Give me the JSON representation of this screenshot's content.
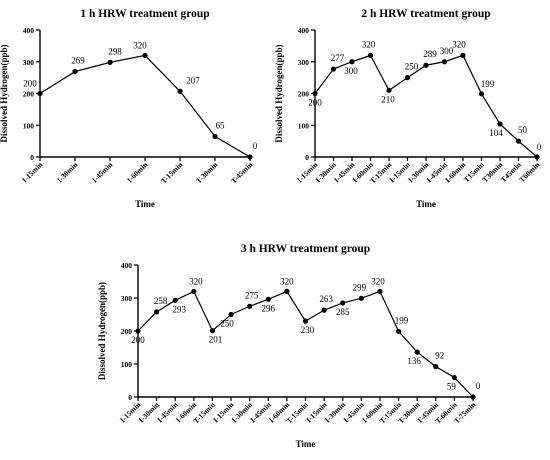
{
  "figure": {
    "background": "#ffffff",
    "line_color": "#000000"
  },
  "chart_data": [
    {
      "type": "line",
      "title": "1 h HRW treatment group",
      "xlabel": "Time",
      "ylabel": "Dissolved Hydrogen(ppb)",
      "ylim": [
        0,
        400
      ],
      "yticks": [
        "0",
        "100",
        "200",
        "300",
        "400"
      ],
      "grid": false,
      "legend": "none",
      "categories": [
        "I-15min",
        "I-30min",
        "I-45min",
        "I-60min",
        "T-15min",
        "T-30min",
        "T-45min"
      ],
      "series": [
        {
          "values": [
            200,
            269,
            298,
            320,
            207,
            65,
            0
          ],
          "labels": [
            "200",
            "269",
            "298",
            "320",
            "207",
            "65",
            "0"
          ]
        }
      ]
    },
    {
      "type": "line",
      "title": "2 h HRW treatment group",
      "xlabel": "Time",
      "ylabel": "Dissolved Hydrogen(ppb)",
      "ylim": [
        0,
        400
      ],
      "yticks": [
        "0",
        "100",
        "200",
        "300",
        "400"
      ],
      "grid": false,
      "legend": "none",
      "categories": [
        "I-15min",
        "I-30min",
        "I-45min",
        "I-60min",
        "T-15min",
        "I-15min",
        "I-30min",
        "I-45min",
        "I-60min",
        "T15min",
        "T30min",
        "T45min",
        "T60min"
      ],
      "series": [
        {
          "values": [
            200,
            277,
            300,
            320,
            210,
            250,
            289,
            300,
            320,
            199,
            104,
            50,
            0
          ],
          "labels": [
            "200",
            "277",
            "300",
            "320",
            "210",
            "250",
            "289",
            "300",
            "320",
            "199",
            "104",
            "50",
            "0"
          ]
        }
      ]
    },
    {
      "type": "line",
      "title": "3 h HRW treatment group",
      "xlabel": "Time",
      "ylabel": "Dissolved Hydrogen(ppb)",
      "ylim": [
        0,
        400
      ],
      "yticks": [
        "0",
        "100",
        "200",
        "300",
        "400"
      ],
      "grid": false,
      "legend": "none",
      "categories": [
        "I-15min",
        "I-30min",
        "I-45min",
        "I-60min",
        "T-15min",
        "I-15min",
        "I-30min",
        "I-45min",
        "I-60min",
        "T-15min",
        "I-15min",
        "I-30min",
        "I-45min",
        "I-60min",
        "T-15min",
        "T-30min",
        "T-45min",
        "T-60min",
        "T-75min"
      ],
      "series": [
        {
          "values": [
            200,
            258,
            293,
            320,
            201,
            250,
            275,
            296,
            320,
            230,
            263,
            285,
            299,
            320,
            199,
            136,
            92,
            59,
            0
          ],
          "labels": [
            "200",
            "258",
            "293",
            "320",
            "201",
            "250",
            "275",
            "296",
            "320",
            "230",
            "263",
            "285",
            "299",
            "320",
            "199",
            "136",
            "92",
            "59",
            "0"
          ]
        }
      ]
    }
  ]
}
